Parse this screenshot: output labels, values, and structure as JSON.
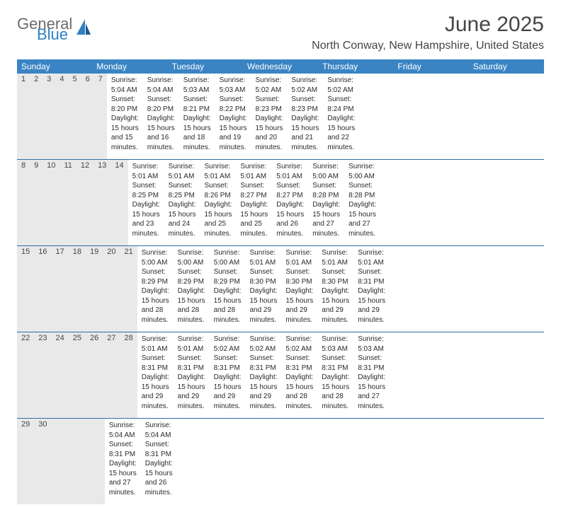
{
  "logo": {
    "general": "General",
    "blue": "Blue"
  },
  "title": "June 2025",
  "location": "North Conway, New Hampshire, United States",
  "colors": {
    "header_bg": "#3a84c4",
    "daynum_bg": "#e9e9e9",
    "week_border": "#2f6da3",
    "text_gray": "#454545",
    "logo_gray": "#6c6c6c",
    "logo_blue": "#2f80c2"
  },
  "weekdays": [
    "Sunday",
    "Monday",
    "Tuesday",
    "Wednesday",
    "Thursday",
    "Friday",
    "Saturday"
  ],
  "weeks": [
    [
      {
        "n": "1",
        "sr": "Sunrise: 5:04 AM",
        "ss": "Sunset: 8:20 PM",
        "d1": "Daylight: 15 hours",
        "d2": "and 15 minutes."
      },
      {
        "n": "2",
        "sr": "Sunrise: 5:04 AM",
        "ss": "Sunset: 8:20 PM",
        "d1": "Daylight: 15 hours",
        "d2": "and 16 minutes."
      },
      {
        "n": "3",
        "sr": "Sunrise: 5:03 AM",
        "ss": "Sunset: 8:21 PM",
        "d1": "Daylight: 15 hours",
        "d2": "and 18 minutes."
      },
      {
        "n": "4",
        "sr": "Sunrise: 5:03 AM",
        "ss": "Sunset: 8:22 PM",
        "d1": "Daylight: 15 hours",
        "d2": "and 19 minutes."
      },
      {
        "n": "5",
        "sr": "Sunrise: 5:02 AM",
        "ss": "Sunset: 8:23 PM",
        "d1": "Daylight: 15 hours",
        "d2": "and 20 minutes."
      },
      {
        "n": "6",
        "sr": "Sunrise: 5:02 AM",
        "ss": "Sunset: 8:23 PM",
        "d1": "Daylight: 15 hours",
        "d2": "and 21 minutes."
      },
      {
        "n": "7",
        "sr": "Sunrise: 5:02 AM",
        "ss": "Sunset: 8:24 PM",
        "d1": "Daylight: 15 hours",
        "d2": "and 22 minutes."
      }
    ],
    [
      {
        "n": "8",
        "sr": "Sunrise: 5:01 AM",
        "ss": "Sunset: 8:25 PM",
        "d1": "Daylight: 15 hours",
        "d2": "and 23 minutes."
      },
      {
        "n": "9",
        "sr": "Sunrise: 5:01 AM",
        "ss": "Sunset: 8:25 PM",
        "d1": "Daylight: 15 hours",
        "d2": "and 24 minutes."
      },
      {
        "n": "10",
        "sr": "Sunrise: 5:01 AM",
        "ss": "Sunset: 8:26 PM",
        "d1": "Daylight: 15 hours",
        "d2": "and 25 minutes."
      },
      {
        "n": "11",
        "sr": "Sunrise: 5:01 AM",
        "ss": "Sunset: 8:27 PM",
        "d1": "Daylight: 15 hours",
        "d2": "and 25 minutes."
      },
      {
        "n": "12",
        "sr": "Sunrise: 5:01 AM",
        "ss": "Sunset: 8:27 PM",
        "d1": "Daylight: 15 hours",
        "d2": "and 26 minutes."
      },
      {
        "n": "13",
        "sr": "Sunrise: 5:00 AM",
        "ss": "Sunset: 8:28 PM",
        "d1": "Daylight: 15 hours",
        "d2": "and 27 minutes."
      },
      {
        "n": "14",
        "sr": "Sunrise: 5:00 AM",
        "ss": "Sunset: 8:28 PM",
        "d1": "Daylight: 15 hours",
        "d2": "and 27 minutes."
      }
    ],
    [
      {
        "n": "15",
        "sr": "Sunrise: 5:00 AM",
        "ss": "Sunset: 8:29 PM",
        "d1": "Daylight: 15 hours",
        "d2": "and 28 minutes."
      },
      {
        "n": "16",
        "sr": "Sunrise: 5:00 AM",
        "ss": "Sunset: 8:29 PM",
        "d1": "Daylight: 15 hours",
        "d2": "and 28 minutes."
      },
      {
        "n": "17",
        "sr": "Sunrise: 5:00 AM",
        "ss": "Sunset: 8:29 PM",
        "d1": "Daylight: 15 hours",
        "d2": "and 28 minutes."
      },
      {
        "n": "18",
        "sr": "Sunrise: 5:01 AM",
        "ss": "Sunset: 8:30 PM",
        "d1": "Daylight: 15 hours",
        "d2": "and 29 minutes."
      },
      {
        "n": "19",
        "sr": "Sunrise: 5:01 AM",
        "ss": "Sunset: 8:30 PM",
        "d1": "Daylight: 15 hours",
        "d2": "and 29 minutes."
      },
      {
        "n": "20",
        "sr": "Sunrise: 5:01 AM",
        "ss": "Sunset: 8:30 PM",
        "d1": "Daylight: 15 hours",
        "d2": "and 29 minutes."
      },
      {
        "n": "21",
        "sr": "Sunrise: 5:01 AM",
        "ss": "Sunset: 8:31 PM",
        "d1": "Daylight: 15 hours",
        "d2": "and 29 minutes."
      }
    ],
    [
      {
        "n": "22",
        "sr": "Sunrise: 5:01 AM",
        "ss": "Sunset: 8:31 PM",
        "d1": "Daylight: 15 hours",
        "d2": "and 29 minutes."
      },
      {
        "n": "23",
        "sr": "Sunrise: 5:01 AM",
        "ss": "Sunset: 8:31 PM",
        "d1": "Daylight: 15 hours",
        "d2": "and 29 minutes."
      },
      {
        "n": "24",
        "sr": "Sunrise: 5:02 AM",
        "ss": "Sunset: 8:31 PM",
        "d1": "Daylight: 15 hours",
        "d2": "and 29 minutes."
      },
      {
        "n": "25",
        "sr": "Sunrise: 5:02 AM",
        "ss": "Sunset: 8:31 PM",
        "d1": "Daylight: 15 hours",
        "d2": "and 29 minutes."
      },
      {
        "n": "26",
        "sr": "Sunrise: 5:02 AM",
        "ss": "Sunset: 8:31 PM",
        "d1": "Daylight: 15 hours",
        "d2": "and 28 minutes."
      },
      {
        "n": "27",
        "sr": "Sunrise: 5:03 AM",
        "ss": "Sunset: 8:31 PM",
        "d1": "Daylight: 15 hours",
        "d2": "and 28 minutes."
      },
      {
        "n": "28",
        "sr": "Sunrise: 5:03 AM",
        "ss": "Sunset: 8:31 PM",
        "d1": "Daylight: 15 hours",
        "d2": "and 27 minutes."
      }
    ],
    [
      {
        "n": "29",
        "sr": "Sunrise: 5:04 AM",
        "ss": "Sunset: 8:31 PM",
        "d1": "Daylight: 15 hours",
        "d2": "and 27 minutes."
      },
      {
        "n": "30",
        "sr": "Sunrise: 5:04 AM",
        "ss": "Sunset: 8:31 PM",
        "d1": "Daylight: 15 hours",
        "d2": "and 26 minutes."
      },
      null,
      null,
      null,
      null,
      null
    ]
  ]
}
